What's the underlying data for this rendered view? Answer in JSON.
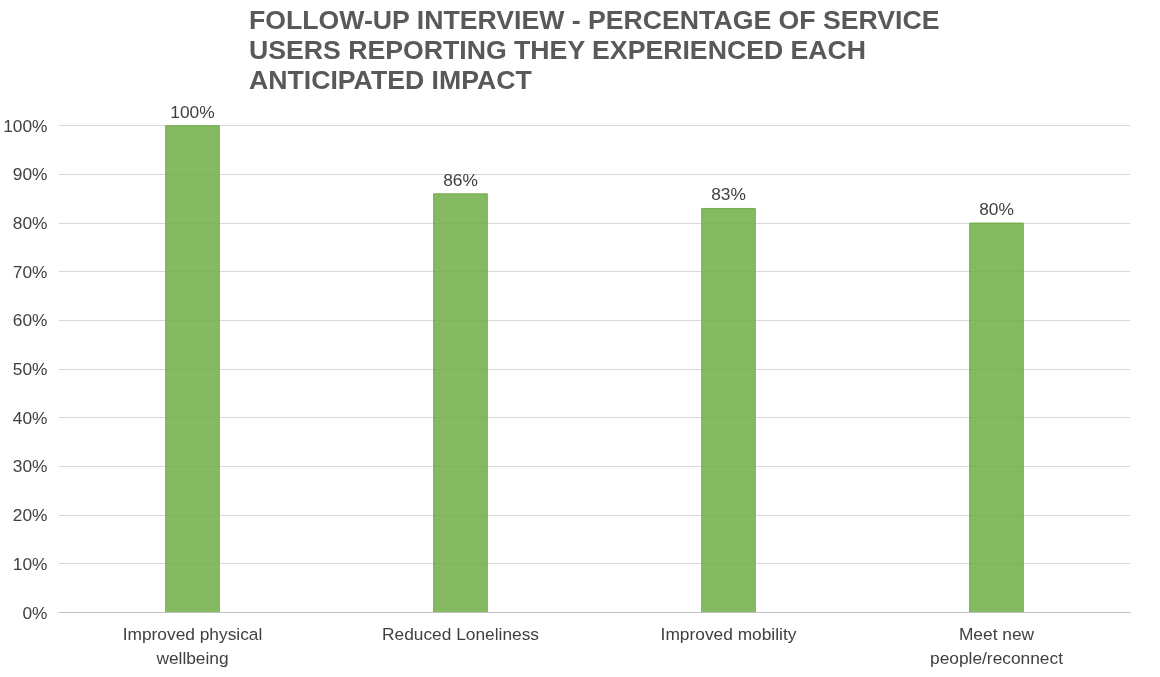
{
  "chart_data": {
    "type": "bar",
    "title": "FOLLOW-UP INTERVIEW - PERCENTAGE OF SERVICE USERS REPORTING THEY EXPERIENCED EACH ANTICIPATED IMPACT",
    "categories": [
      "Improved physical wellbeing",
      "Reduced Loneliness",
      "Improved mobility",
      "Meet new people/reconnect"
    ],
    "values": [
      100,
      86,
      83,
      80
    ],
    "value_labels": [
      "100%",
      "86%",
      "83%",
      "80%"
    ],
    "color": "#70ad47",
    "ylim": [
      0,
      100
    ],
    "yticks": [
      {
        "value": 0,
        "label": "0%"
      },
      {
        "value": 10,
        "label": "10%"
      },
      {
        "value": 20,
        "label": "20%"
      },
      {
        "value": 30,
        "label": "30%"
      },
      {
        "value": 40,
        "label": "40%"
      },
      {
        "value": 50,
        "label": "50%"
      },
      {
        "value": 60,
        "label": "60%"
      },
      {
        "value": 70,
        "label": "70%"
      },
      {
        "value": 80,
        "label": "80%"
      },
      {
        "value": 90,
        "label": "90%"
      },
      {
        "value": 100,
        "label": "100%"
      }
    ],
    "grid": "y"
  }
}
